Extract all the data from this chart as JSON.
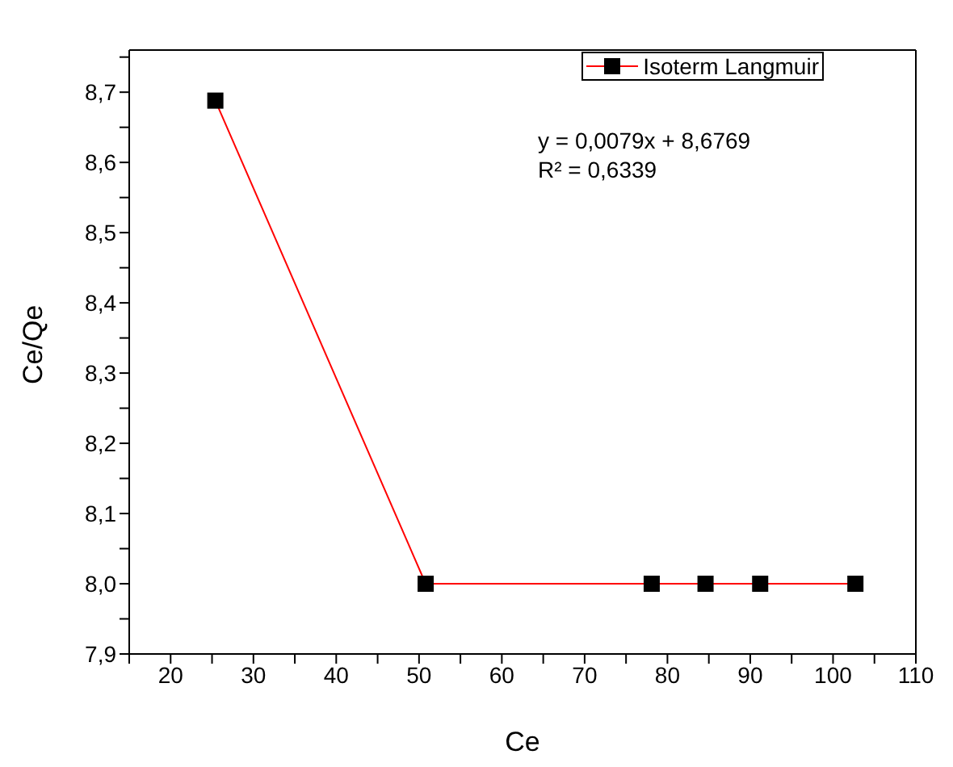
{
  "chart_data": {
    "type": "line",
    "xlabel": "Ce",
    "ylabel": "Ce/Qe",
    "x": [
      25.4,
      50.8,
      78.1,
      84.6,
      91.2,
      102.7
    ],
    "series": [
      {
        "name": "Isoterm Langmuir",
        "color": "#ff0000",
        "values": [
          8.688,
          8.0,
          8.0,
          8.0,
          8.0,
          8.0
        ]
      }
    ],
    "xlim": [
      15,
      110
    ],
    "ylim": [
      7.9,
      8.76
    ],
    "xticks": [
      {
        "value": 15,
        "label": null
      },
      20,
      {
        "value": 25,
        "label": null
      },
      30,
      {
        "value": 35,
        "label": null
      },
      40,
      {
        "value": 45,
        "label": null
      },
      50,
      {
        "value": 55,
        "label": null
      },
      60,
      {
        "value": 65,
        "label": null
      },
      70,
      {
        "value": 75,
        "label": null
      },
      80,
      {
        "value": 85,
        "label": null
      },
      90,
      {
        "value": 95,
        "label": null
      },
      100,
      {
        "value": 105,
        "label": null
      },
      110
    ],
    "yticks": [
      {
        "value": 7.9,
        "label": "7,9"
      },
      {
        "value": 7.95,
        "label": null
      },
      {
        "value": 8.0,
        "label": "8,0"
      },
      {
        "value": 8.05,
        "label": null
      },
      {
        "value": 8.1,
        "label": "8,1"
      },
      {
        "value": 8.15,
        "label": null
      },
      {
        "value": 8.2,
        "label": "8,2"
      },
      {
        "value": 8.25,
        "label": null
      },
      {
        "value": 8.3,
        "label": "8,3"
      },
      {
        "value": 8.35,
        "label": null
      },
      {
        "value": 8.4,
        "label": "8,4"
      },
      {
        "value": 8.45,
        "label": null
      },
      {
        "value": 8.5,
        "label": "8,5"
      },
      {
        "value": 8.55,
        "label": null
      },
      {
        "value": 8.6,
        "label": "8,6"
      },
      {
        "value": 8.65,
        "label": null
      },
      {
        "value": 8.7,
        "label": "8,7"
      },
      {
        "value": 8.75,
        "label": null
      }
    ],
    "annotations": [
      "y = 0,0079x + 8,6769",
      "R² = 0,6339"
    ],
    "legend": "top right",
    "marker": "square",
    "line_style": "solid",
    "grid": false
  }
}
